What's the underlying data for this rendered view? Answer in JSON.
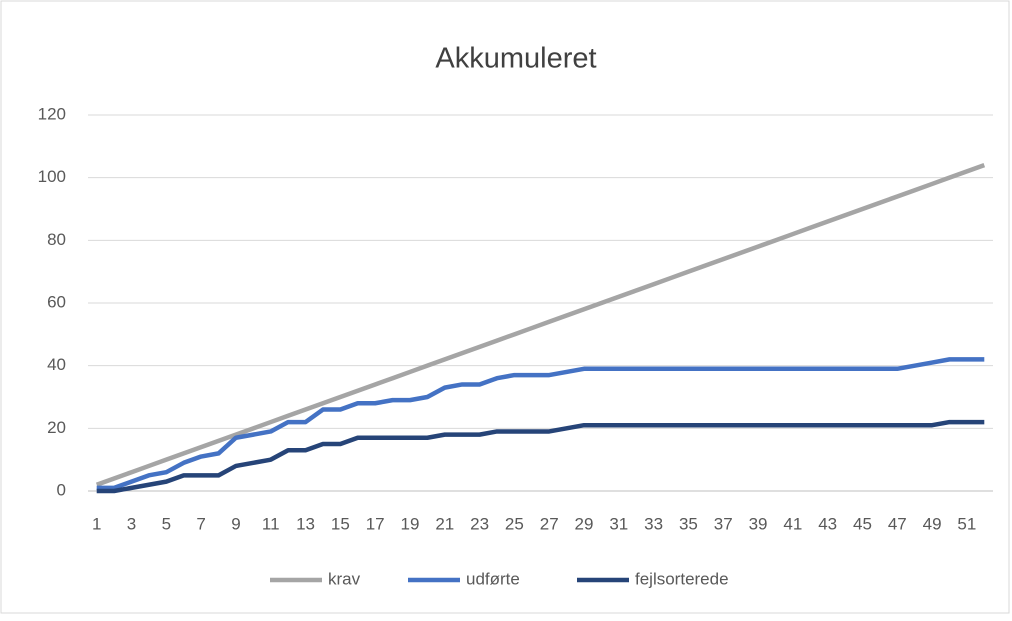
{
  "chart_data": {
    "type": "line",
    "title": "Akkumuleret",
    "categories": [
      1,
      null,
      3,
      null,
      5,
      null,
      7,
      null,
      9,
      null,
      11,
      null,
      13,
      null,
      15,
      null,
      17,
      null,
      19,
      null,
      21,
      null,
      23,
      null,
      25,
      null,
      27,
      null,
      29,
      null,
      31,
      null,
      33,
      null,
      35,
      null,
      37,
      null,
      39,
      null,
      41,
      null,
      43,
      null,
      45,
      null,
      47,
      null,
      49,
      null,
      51,
      null
    ],
    "series": [
      {
        "name": "krav",
        "color": "#a5a5a5",
        "values": [
          2,
          4,
          6,
          8,
          10,
          12,
          14,
          16,
          18,
          20,
          22,
          24,
          26,
          28,
          30,
          32,
          34,
          36,
          38,
          40,
          42,
          44,
          46,
          48,
          50,
          52,
          54,
          56,
          58,
          60,
          62,
          64,
          66,
          68,
          70,
          72,
          74,
          76,
          78,
          80,
          82,
          84,
          86,
          88,
          90,
          92,
          94,
          96,
          98,
          100,
          102,
          104
        ]
      },
      {
        "name": "udførte",
        "color": "#4472c4",
        "values": [
          1,
          1,
          3,
          5,
          6,
          9,
          11,
          12,
          17,
          18,
          19,
          22,
          22,
          26,
          26,
          28,
          28,
          29,
          29,
          30,
          33,
          34,
          34,
          36,
          37,
          37,
          37,
          38,
          39,
          39,
          39,
          39,
          39,
          39,
          39,
          39,
          39,
          39,
          39,
          39,
          39,
          39,
          39,
          39,
          39,
          39,
          39,
          40,
          41,
          42,
          42,
          42
        ]
      },
      {
        "name": "fejlsorterede",
        "color": "#264478",
        "values": [
          0,
          0,
          1,
          2,
          3,
          5,
          5,
          5,
          8,
          9,
          10,
          13,
          13,
          15,
          15,
          17,
          17,
          17,
          17,
          17,
          18,
          18,
          18,
          19,
          19,
          19,
          19,
          20,
          21,
          21,
          21,
          21,
          21,
          21,
          21,
          21,
          21,
          21,
          21,
          21,
          21,
          21,
          21,
          21,
          21,
          21,
          21,
          21,
          21,
          22,
          22,
          22
        ]
      }
    ],
    "ylim": [
      0,
      120
    ],
    "yticks": [
      0,
      20,
      40,
      60,
      80,
      100,
      120
    ],
    "grid": true,
    "legend": "bottom"
  }
}
